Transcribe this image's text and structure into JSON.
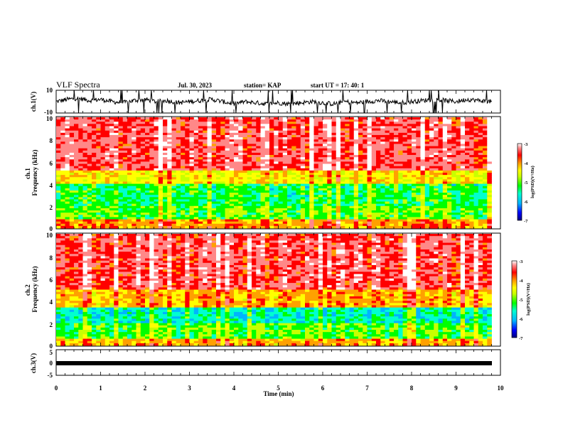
{
  "header": {
    "title": "VLF Spectra",
    "date": "Jul. 30, 2023",
    "station": "station= KAP",
    "start": "start UT = 17: 40: 1"
  },
  "chart_data": [
    {
      "type": "line",
      "title": "",
      "ylabel": "ch.1(V)",
      "ylim": [
        -10,
        10
      ],
      "yticks": [
        "10",
        "-10"
      ],
      "x": [
        0.0,
        0.25,
        0.5,
        0.75,
        1.0,
        1.25,
        1.5,
        1.75,
        2.0,
        2.25,
        2.5,
        2.75,
        3.0,
        3.25,
        3.5,
        3.75,
        4.0,
        4.25,
        4.5,
        4.75,
        5.0,
        5.25,
        5.5,
        5.75,
        6.0,
        6.25,
        6.5,
        6.75,
        7.0,
        7.25,
        7.5,
        7.75,
        8.0,
        8.25,
        8.5,
        8.75,
        9.0,
        9.25,
        9.5,
        9.8
      ],
      "values": [
        0,
        2,
        3,
        1,
        2,
        0,
        -1,
        1,
        2,
        0,
        1,
        -1,
        0,
        1,
        2,
        0,
        -2,
        0,
        -1,
        -2,
        -1,
        -2,
        -1,
        0,
        -1,
        -2,
        0,
        -1,
        0,
        1,
        0,
        -1,
        0,
        1,
        2,
        1,
        0,
        2,
        1,
        0
      ]
    },
    {
      "type": "heatmap",
      "ylabel": "ch.1\nFrequency (kHz)",
      "ylim": [
        0,
        10
      ],
      "yticks": [
        "0",
        "2",
        "4",
        "6",
        "8",
        "10"
      ],
      "xlim": [
        0,
        9.8
      ],
      "colorbar": {
        "label": "log(PSD)(V²/Hz)",
        "range": [
          -7,
          -3
        ],
        "ticks": [
          "-3",
          "-4",
          "-5",
          "-6",
          "-7"
        ]
      },
      "band_levels_kHz": [
        {
          "f": [
            0,
            0.8
          ],
          "level": -4.2
        },
        {
          "f": [
            0.8,
            2.0
          ],
          "level": -5.3
        },
        {
          "f": [
            2.0,
            4.0
          ],
          "level": -5.5
        },
        {
          "f": [
            4.0,
            5.2
          ],
          "level": -4.6
        },
        {
          "f": [
            5.2,
            10
          ],
          "level": -3.6
        }
      ]
    },
    {
      "type": "heatmap",
      "ylabel": "ch.2\nFrequency (kHz)",
      "ylim": [
        0,
        10
      ],
      "yticks": [
        "0",
        "2",
        "4",
        "6",
        "8",
        "10"
      ],
      "xlim": [
        0,
        9.8
      ],
      "colorbar": {
        "label": "log(PSD)(V²/Hz)",
        "range": [
          -7,
          -3
        ],
        "ticks": [
          "-3",
          "-4",
          "-5",
          "-6",
          "-7"
        ]
      },
      "band_levels_kHz": [
        {
          "f": [
            0,
            0.6
          ],
          "level": -4.3
        },
        {
          "f": [
            0.6,
            2.0
          ],
          "level": -5.3
        },
        {
          "f": [
            2.0,
            3.5
          ],
          "level": -5.8
        },
        {
          "f": [
            3.5,
            5.0
          ],
          "level": -4.3
        },
        {
          "f": [
            5.0,
            10
          ],
          "level": -3.6
        }
      ]
    },
    {
      "type": "line",
      "ylabel": "ch.3(V)",
      "ylim": [
        -5,
        5
      ],
      "yticks": [
        "5",
        "0",
        "-5"
      ],
      "xlabel": "Time (min)",
      "xlim": [
        0,
        10
      ],
      "xticks": [
        "0",
        "1",
        "2",
        "3",
        "4",
        "5",
        "6",
        "7",
        "8",
        "9",
        "10"
      ],
      "x": [
        0,
        9.8
      ],
      "values": [
        0,
        0
      ]
    }
  ],
  "colors": {
    "scale": [
      "#00007f",
      "#0000ff",
      "#00b4ff",
      "#00ffd0",
      "#00ff00",
      "#c8ff00",
      "#ffff00",
      "#ffa000",
      "#ff0000",
      "#ff8888",
      "#ffffff"
    ]
  }
}
